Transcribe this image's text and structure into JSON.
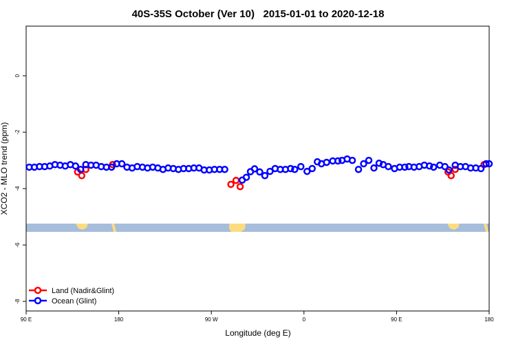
{
  "chart_data": {
    "type": "scatter",
    "title": "40S-35S October (Ver 10)   2015-01-01 to 2020-12-18",
    "xlabel": "Longitude (deg E)",
    "ylabel": "XCO2 - MLO trend (ppm)",
    "xlim": [
      90,
      540
    ],
    "xticks": [
      {
        "value": 90,
        "label": "90 E"
      },
      {
        "value": 180,
        "label": "180"
      },
      {
        "value": 270,
        "label": "90 W"
      },
      {
        "value": 360,
        "label": "0"
      },
      {
        "value": 450,
        "label": "90 E"
      },
      {
        "value": 540,
        "label": "180"
      }
    ],
    "ylim": [
      -8.34,
      1.76
    ],
    "yticks": [
      0,
      -2,
      -4,
      -6,
      -8
    ],
    "legend": "bottom-left",
    "series": [
      {
        "name": "Land (Nadir&Glint)",
        "color": "#ff0000",
        "x": [
          140,
          144,
          148,
          174,
          289,
          294,
          298,
          500,
          503,
          507,
          535
        ],
        "values": [
          -3.41,
          -3.54,
          -3.32,
          -3.15,
          -3.85,
          -3.71,
          -3.93,
          -3.41,
          -3.54,
          -3.32,
          -3.15
        ]
      },
      {
        "name": "Ocean (Glint)",
        "color": "#0000ff",
        "x": [
          93,
          98,
          103,
          108,
          113,
          118,
          123,
          128,
          133,
          138,
          143,
          148,
          153,
          158,
          163,
          168,
          173,
          178,
          183,
          188,
          193,
          198,
          203,
          208,
          213,
          218,
          223,
          228,
          233,
          238,
          243,
          248,
          253,
          258,
          263,
          268,
          273,
          278,
          283,
          300,
          304,
          308,
          312,
          317,
          322,
          327,
          332,
          337,
          342,
          347,
          351,
          357,
          363,
          368,
          373,
          377,
          382,
          388,
          393,
          397,
          402,
          407,
          413,
          418,
          423,
          428,
          433,
          437,
          442,
          448,
          453,
          458,
          462,
          467,
          472,
          477,
          482,
          486,
          492,
          497,
          501,
          507,
          512,
          517,
          522,
          527,
          532,
          537,
          540
        ],
        "values": [
          -3.24,
          -3.24,
          -3.22,
          -3.22,
          -3.2,
          -3.15,
          -3.17,
          -3.2,
          -3.15,
          -3.2,
          -3.32,
          -3.15,
          -3.17,
          -3.17,
          -3.22,
          -3.24,
          -3.24,
          -3.12,
          -3.12,
          -3.24,
          -3.27,
          -3.22,
          -3.24,
          -3.27,
          -3.24,
          -3.27,
          -3.32,
          -3.27,
          -3.29,
          -3.32,
          -3.29,
          -3.29,
          -3.27,
          -3.27,
          -3.34,
          -3.34,
          -3.32,
          -3.32,
          -3.32,
          -3.7,
          -3.6,
          -3.4,
          -3.3,
          -3.41,
          -3.54,
          -3.39,
          -3.29,
          -3.32,
          -3.32,
          -3.29,
          -3.32,
          -3.22,
          -3.39,
          -3.29,
          -3.05,
          -3.12,
          -3.07,
          -3.02,
          -3.02,
          -3.0,
          -2.95,
          -3.0,
          -3.32,
          -3.12,
          -3.0,
          -3.27,
          -3.1,
          -3.15,
          -3.22,
          -3.29,
          -3.24,
          -3.24,
          -3.22,
          -3.24,
          -3.22,
          -3.17,
          -3.2,
          -3.24,
          -3.17,
          -3.22,
          -3.34,
          -3.17,
          -3.22,
          -3.22,
          -3.27,
          -3.27,
          -3.29,
          -3.12,
          -3.12
        ]
      }
    ]
  }
}
